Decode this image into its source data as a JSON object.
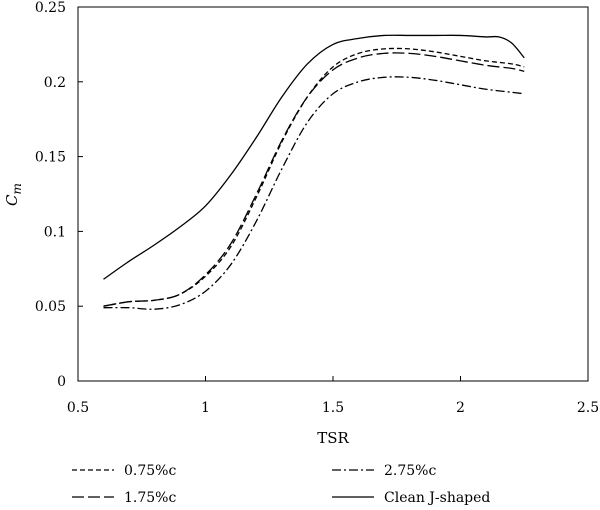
{
  "chart_data": {
    "type": "line",
    "title": "",
    "xlabel": "TSR",
    "ylabel": "C",
    "ylabel_subscript": "m",
    "xlim": [
      0.5,
      2.5
    ],
    "ylim": [
      0,
      0.25
    ],
    "x_ticks": [
      "0.5",
      "1",
      "1.5",
      "2",
      "2.5"
    ],
    "y_ticks": [
      "0",
      "0.05",
      "0.1",
      "0.15",
      "0.2",
      "0.25"
    ],
    "grid": false,
    "legend_position": "bottom",
    "series": [
      {
        "name": "0.75%c",
        "style": "dashed-short",
        "x": [
          0.6,
          0.7,
          0.8,
          0.9,
          1.0,
          1.1,
          1.2,
          1.3,
          1.4,
          1.5,
          1.6,
          1.7,
          1.8,
          1.9,
          2.0,
          2.1,
          2.2,
          2.25
        ],
        "y": [
          0.05,
          0.053,
          0.054,
          0.058,
          0.07,
          0.09,
          0.123,
          0.16,
          0.19,
          0.21,
          0.219,
          0.222,
          0.222,
          0.22,
          0.217,
          0.214,
          0.212,
          0.21
        ]
      },
      {
        "name": "1.75%c",
        "style": "dashed-long",
        "x": [
          0.6,
          0.7,
          0.8,
          0.9,
          1.0,
          1.1,
          1.2,
          1.3,
          1.4,
          1.5,
          1.6,
          1.7,
          1.8,
          1.9,
          2.0,
          2.1,
          2.2,
          2.25
        ],
        "y": [
          0.05,
          0.053,
          0.054,
          0.058,
          0.071,
          0.092,
          0.125,
          0.161,
          0.19,
          0.208,
          0.216,
          0.219,
          0.219,
          0.217,
          0.214,
          0.211,
          0.209,
          0.207
        ]
      },
      {
        "name": "2.75%c",
        "style": "dash-dot",
        "x": [
          0.6,
          0.7,
          0.8,
          0.9,
          1.0,
          1.1,
          1.2,
          1.3,
          1.4,
          1.5,
          1.6,
          1.7,
          1.8,
          1.9,
          2.0,
          2.1,
          2.2,
          2.25
        ],
        "y": [
          0.049,
          0.049,
          0.048,
          0.051,
          0.06,
          0.078,
          0.107,
          0.142,
          0.173,
          0.192,
          0.2,
          0.203,
          0.203,
          0.201,
          0.198,
          0.195,
          0.193,
          0.192
        ]
      },
      {
        "name": "Clean J-shaped",
        "style": "solid",
        "x": [
          0.6,
          0.7,
          0.8,
          0.9,
          1.0,
          1.1,
          1.2,
          1.3,
          1.4,
          1.5,
          1.6,
          1.7,
          1.8,
          1.9,
          2.0,
          2.1,
          2.15,
          2.2,
          2.25
        ],
        "y": [
          0.068,
          0.08,
          0.091,
          0.103,
          0.117,
          0.138,
          0.163,
          0.19,
          0.212,
          0.225,
          0.229,
          0.231,
          0.231,
          0.231,
          0.231,
          0.23,
          0.23,
          0.226,
          0.216
        ]
      }
    ]
  }
}
